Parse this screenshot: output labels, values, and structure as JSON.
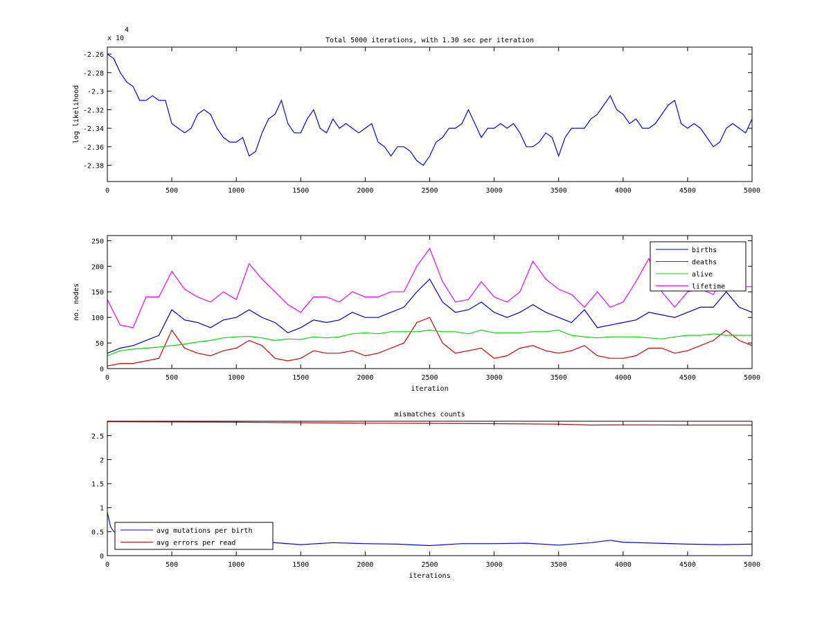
{
  "chart_data": [
    {
      "type": "line",
      "title": "Total 5000 iterations, with 1.30 sec per iteration",
      "xlabel": "",
      "ylabel": "log likelihood",
      "y_multiplier_label": "x 10",
      "y_multiplier_exp": "4",
      "xlim": [
        0,
        5000
      ],
      "ylim": [
        -2.3975,
        -2.2525
      ],
      "xticks": [
        0,
        500,
        1000,
        1500,
        2000,
        2500,
        3000,
        3500,
        4000,
        4500,
        5000
      ],
      "yticks": [
        -2.38,
        -2.36,
        -2.34,
        -2.32,
        -2.3,
        -2.28,
        -2.26
      ],
      "ytick_labels": [
        "-2.38",
        "-2.36",
        "-2.34",
        "-2.32",
        "-2.3",
        "-2.28",
        "-2.26"
      ],
      "grid": false,
      "series": [
        {
          "name": "log likelihood",
          "color": "#0000ff",
          "x": [
            0,
            50,
            100,
            150,
            200,
            250,
            300,
            350,
            400,
            450,
            500,
            550,
            600,
            650,
            700,
            750,
            800,
            850,
            900,
            950,
            1000,
            1050,
            1100,
            1150,
            1200,
            1250,
            1300,
            1350,
            1400,
            1450,
            1500,
            1550,
            1600,
            1650,
            1700,
            1750,
            1800,
            1850,
            1900,
            1950,
            2000,
            2050,
            2100,
            2150,
            2200,
            2250,
            2300,
            2350,
            2400,
            2450,
            2500,
            2550,
            2600,
            2650,
            2700,
            2750,
            2800,
            2850,
            2900,
            2950,
            3000,
            3050,
            3100,
            3150,
            3200,
            3250,
            3300,
            3350,
            3400,
            3450,
            3500,
            3550,
            3600,
            3650,
            3700,
            3750,
            3800,
            3850,
            3900,
            3950,
            4000,
            4050,
            4100,
            4150,
            4200,
            4250,
            4300,
            4350,
            4400,
            4450,
            4500,
            4550,
            4600,
            4650,
            4700,
            4750,
            4800,
            4850,
            4900,
            4950,
            5000
          ],
          "values": [
            -2.26,
            -2.265,
            -2.28,
            -2.29,
            -2.295,
            -2.31,
            -2.31,
            -2.305,
            -2.31,
            -2.31,
            -2.335,
            -2.34,
            -2.345,
            -2.34,
            -2.325,
            -2.32,
            -2.325,
            -2.34,
            -2.35,
            -2.355,
            -2.355,
            -2.35,
            -2.37,
            -2.365,
            -2.345,
            -2.33,
            -2.325,
            -2.31,
            -2.335,
            -2.345,
            -2.345,
            -2.33,
            -2.32,
            -2.34,
            -2.345,
            -2.33,
            -2.34,
            -2.335,
            -2.34,
            -2.345,
            -2.34,
            -2.335,
            -2.355,
            -2.36,
            -2.37,
            -2.36,
            -2.36,
            -2.365,
            -2.375,
            -2.38,
            -2.37,
            -2.355,
            -2.35,
            -2.34,
            -2.34,
            -2.335,
            -2.32,
            -2.335,
            -2.35,
            -2.34,
            -2.34,
            -2.335,
            -2.34,
            -2.335,
            -2.345,
            -2.36,
            -2.36,
            -2.355,
            -2.345,
            -2.35,
            -2.37,
            -2.35,
            -2.34,
            -2.34,
            -2.34,
            -2.33,
            -2.325,
            -2.315,
            -2.305,
            -2.32,
            -2.325,
            -2.335,
            -2.33,
            -2.34,
            -2.34,
            -2.335,
            -2.325,
            -2.315,
            -2.31,
            -2.335,
            -2.34,
            -2.335,
            -2.34,
            -2.35,
            -2.36,
            -2.355,
            -2.34,
            -2.335,
            -2.34,
            -2.345,
            -2.33
          ]
        }
      ]
    },
    {
      "type": "line",
      "title": "",
      "xlabel": "iteration",
      "ylabel": "no. nodes",
      "xlim": [
        0,
        5000
      ],
      "ylim": [
        0,
        260
      ],
      "xticks": [
        0,
        500,
        1000,
        1500,
        2000,
        2500,
        3000,
        3500,
        4000,
        4500,
        5000
      ],
      "yticks": [
        0,
        50,
        100,
        150,
        200,
        250
      ],
      "ytick_labels": [
        "0",
        "50",
        "100",
        "150",
        "200",
        "250"
      ],
      "grid": false,
      "legend": "top-right",
      "x": [
        0,
        100,
        200,
        300,
        400,
        500,
        600,
        700,
        800,
        900,
        1000,
        1100,
        1200,
        1300,
        1400,
        1500,
        1600,
        1700,
        1800,
        1900,
        2000,
        2100,
        2200,
        2300,
        2400,
        2500,
        2600,
        2700,
        2800,
        2900,
        3000,
        3100,
        3200,
        3300,
        3400,
        3500,
        3600,
        3700,
        3800,
        3900,
        4000,
        4100,
        4200,
        4300,
        4400,
        4500,
        4600,
        4700,
        4800,
        4900,
        5000
      ],
      "series": [
        {
          "name": "births",
          "color": "#0000cc",
          "values": [
            30,
            40,
            45,
            55,
            65,
            115,
            95,
            90,
            80,
            95,
            100,
            115,
            100,
            90,
            70,
            80,
            95,
            90,
            95,
            110,
            100,
            100,
            110,
            120,
            150,
            175,
            130,
            110,
            115,
            130,
            110,
            100,
            110,
            125,
            110,
            100,
            90,
            115,
            80,
            85,
            90,
            95,
            110,
            105,
            100,
            110,
            120,
            120,
            150,
            120,
            110
          ]
        },
        {
          "name": "deaths",
          "color": "#dd0000",
          "values": [
            5,
            10,
            10,
            15,
            20,
            75,
            40,
            30,
            25,
            35,
            40,
            55,
            45,
            20,
            15,
            20,
            35,
            30,
            30,
            35,
            25,
            30,
            40,
            50,
            90,
            100,
            50,
            30,
            35,
            40,
            20,
            25,
            40,
            45,
            35,
            30,
            35,
            45,
            25,
            20,
            20,
            25,
            40,
            40,
            30,
            35,
            45,
            55,
            75,
            55,
            45
          ]
        },
        {
          "name": "alive",
          "color": "#00dd00",
          "values": [
            25,
            35,
            38,
            40,
            42,
            45,
            48,
            52,
            55,
            60,
            62,
            63,
            60,
            55,
            58,
            57,
            62,
            60,
            62,
            68,
            70,
            68,
            72,
            72,
            72,
            75,
            72,
            72,
            68,
            75,
            70,
            70,
            70,
            72,
            72,
            75,
            65,
            62,
            60,
            62,
            62,
            62,
            60,
            58,
            62,
            65,
            65,
            68,
            65,
            65,
            65
          ]
        },
        {
          "name": "lifetime",
          "color": "#ff00ff",
          "values": [
            135,
            85,
            80,
            140,
            140,
            190,
            155,
            140,
            130,
            150,
            135,
            205,
            175,
            150,
            125,
            110,
            140,
            140,
            130,
            150,
            140,
            140,
            150,
            150,
            200,
            235,
            170,
            130,
            135,
            170,
            140,
            130,
            150,
            210,
            175,
            155,
            145,
            120,
            150,
            120,
            130,
            170,
            215,
            150,
            120,
            150,
            155,
            145,
            185,
            160,
            160
          ]
        }
      ]
    },
    {
      "type": "line",
      "title": "mismatches counts",
      "xlabel": "iterations",
      "ylabel": "",
      "xlim": [
        0,
        5000
      ],
      "ylim": [
        0,
        2.8
      ],
      "xticks": [
        0,
        500,
        1000,
        1500,
        2000,
        2500,
        3000,
        3500,
        4000,
        4500,
        5000
      ],
      "yticks": [
        0,
        0.5,
        1,
        1.5,
        2,
        2.5
      ],
      "ytick_labels": [
        "0",
        "0.5",
        "1",
        "1.5",
        "2",
        "2.5"
      ],
      "grid": false,
      "legend": "bottom-left",
      "series": [
        {
          "name": "avg mutations per birth",
          "color": "#0000ff",
          "x": [
            0,
            25,
            50,
            100,
            250,
            500,
            750,
            1000,
            1250,
            1500,
            1750,
            2000,
            2250,
            2500,
            2750,
            3000,
            3250,
            3500,
            3750,
            3900,
            4000,
            4250,
            4500,
            4750,
            5000
          ],
          "values": [
            0.9,
            0.6,
            0.5,
            0.45,
            0.38,
            0.33,
            0.3,
            0.3,
            0.28,
            0.23,
            0.27,
            0.25,
            0.24,
            0.21,
            0.25,
            0.25,
            0.26,
            0.22,
            0.27,
            0.32,
            0.28,
            0.26,
            0.24,
            0.23,
            0.24
          ]
        },
        {
          "name": "avg errors per read",
          "color": "#cc0000",
          "x": [
            0,
            500,
            1000,
            1500,
            2000,
            2500,
            3000,
            3500,
            3750,
            4000,
            4500,
            5000
          ],
          "values": [
            2.79,
            2.785,
            2.78,
            2.77,
            2.76,
            2.755,
            2.75,
            2.74,
            2.72,
            2.725,
            2.72,
            2.72
          ]
        }
      ]
    }
  ]
}
